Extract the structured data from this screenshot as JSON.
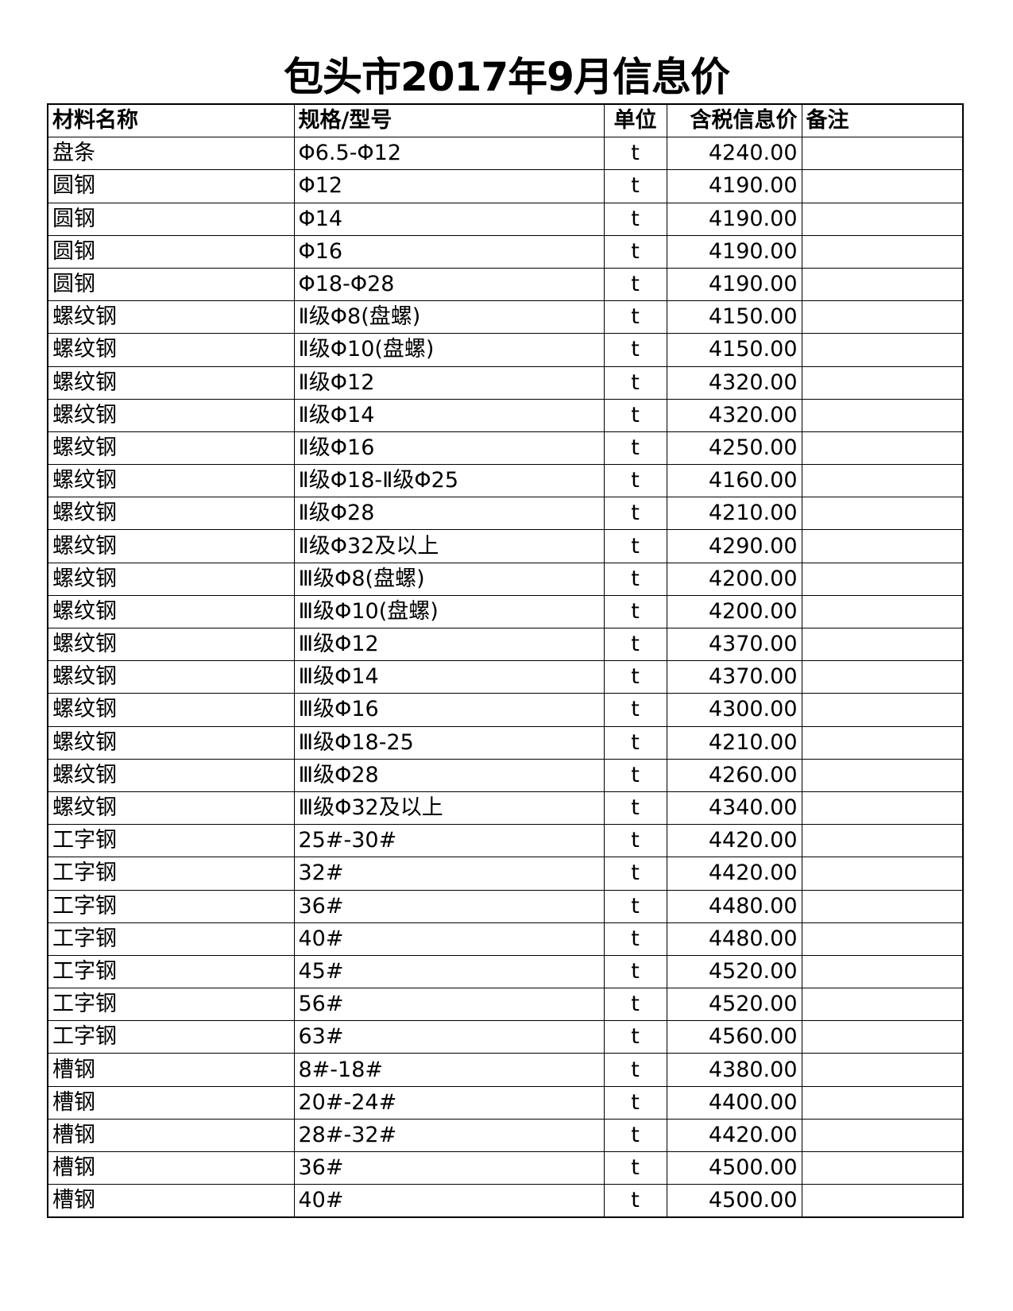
{
  "title": "包头市2017年9月信息价",
  "headers": {
    "name": "材料名称",
    "spec": "规格/型号",
    "unit": "单位",
    "price": "含税信息价",
    "note": "备注"
  },
  "rows": [
    {
      "name": "盘条",
      "spec": "Φ6.5-Φ12",
      "unit": "t",
      "price": "4240.00",
      "note": ""
    },
    {
      "name": "圆钢",
      "spec": "Φ12",
      "unit": "t",
      "price": "4190.00",
      "note": ""
    },
    {
      "name": "圆钢",
      "spec": "Φ14",
      "unit": "t",
      "price": "4190.00",
      "note": ""
    },
    {
      "name": "圆钢",
      "spec": "Φ16",
      "unit": "t",
      "price": "4190.00",
      "note": ""
    },
    {
      "name": "圆钢",
      "spec": "Φ18-Φ28",
      "unit": "t",
      "price": "4190.00",
      "note": ""
    },
    {
      "name": "螺纹钢",
      "spec": "Ⅱ级Φ8(盘螺)",
      "unit": "t",
      "price": "4150.00",
      "note": ""
    },
    {
      "name": "螺纹钢",
      "spec": "Ⅱ级Φ10(盘螺)",
      "unit": "t",
      "price": "4150.00",
      "note": ""
    },
    {
      "name": "螺纹钢",
      "spec": "Ⅱ级Φ12",
      "unit": "t",
      "price": "4320.00",
      "note": ""
    },
    {
      "name": "螺纹钢",
      "spec": "Ⅱ级Φ14",
      "unit": "t",
      "price": "4320.00",
      "note": ""
    },
    {
      "name": "螺纹钢",
      "spec": "Ⅱ级Φ16",
      "unit": "t",
      "price": "4250.00",
      "note": ""
    },
    {
      "name": "螺纹钢",
      "spec": "Ⅱ级Φ18-Ⅱ级Φ25",
      "unit": "t",
      "price": "4160.00",
      "note": ""
    },
    {
      "name": "螺纹钢",
      "spec": "Ⅱ级Φ28",
      "unit": "t",
      "price": "4210.00",
      "note": ""
    },
    {
      "name": "螺纹钢",
      "spec": "Ⅱ级Φ32及以上",
      "unit": "t",
      "price": "4290.00",
      "note": ""
    },
    {
      "name": "螺纹钢",
      "spec": "Ⅲ级Φ8(盘螺)",
      "unit": "t",
      "price": "4200.00",
      "note": ""
    },
    {
      "name": "螺纹钢",
      "spec": "Ⅲ级Φ10(盘螺)",
      "unit": "t",
      "price": "4200.00",
      "note": ""
    },
    {
      "name": "螺纹钢",
      "spec": "Ⅲ级Φ12",
      "unit": "t",
      "price": "4370.00",
      "note": ""
    },
    {
      "name": "螺纹钢",
      "spec": "Ⅲ级Φ14",
      "unit": "t",
      "price": "4370.00",
      "note": ""
    },
    {
      "name": "螺纹钢",
      "spec": "Ⅲ级Φ16",
      "unit": "t",
      "price": "4300.00",
      "note": ""
    },
    {
      "name": "螺纹钢",
      "spec": "Ⅲ级Φ18-25",
      "unit": "t",
      "price": "4210.00",
      "note": ""
    },
    {
      "name": "螺纹钢",
      "spec": "Ⅲ级Φ28",
      "unit": "t",
      "price": "4260.00",
      "note": ""
    },
    {
      "name": "螺纹钢",
      "spec": "Ⅲ级Φ32及以上",
      "unit": "t",
      "price": "4340.00",
      "note": ""
    },
    {
      "name": "工字钢",
      "spec": "25#-30#",
      "unit": "t",
      "price": "4420.00",
      "note": ""
    },
    {
      "name": "工字钢",
      "spec": "32#",
      "unit": "t",
      "price": "4420.00",
      "note": ""
    },
    {
      "name": "工字钢",
      "spec": "36#",
      "unit": "t",
      "price": "4480.00",
      "note": ""
    },
    {
      "name": "工字钢",
      "spec": "40#",
      "unit": "t",
      "price": "4480.00",
      "note": ""
    },
    {
      "name": "工字钢",
      "spec": "45#",
      "unit": "t",
      "price": "4520.00",
      "note": ""
    },
    {
      "name": "工字钢",
      "spec": "56#",
      "unit": "t",
      "price": "4520.00",
      "note": ""
    },
    {
      "name": "工字钢",
      "spec": "63#",
      "unit": "t",
      "price": "4560.00",
      "note": ""
    },
    {
      "name": "槽钢",
      "spec": "8#-18#",
      "unit": "t",
      "price": "4380.00",
      "note": ""
    },
    {
      "name": "槽钢",
      "spec": "20#-24#",
      "unit": "t",
      "price": "4400.00",
      "note": ""
    },
    {
      "name": "槽钢",
      "spec": "28#-32#",
      "unit": "t",
      "price": "4420.00",
      "note": ""
    },
    {
      "name": "槽钢",
      "spec": "36#",
      "unit": "t",
      "price": "4500.00",
      "note": ""
    },
    {
      "name": "槽钢",
      "spec": "40#",
      "unit": "t",
      "price": "4500.00",
      "note": ""
    }
  ]
}
